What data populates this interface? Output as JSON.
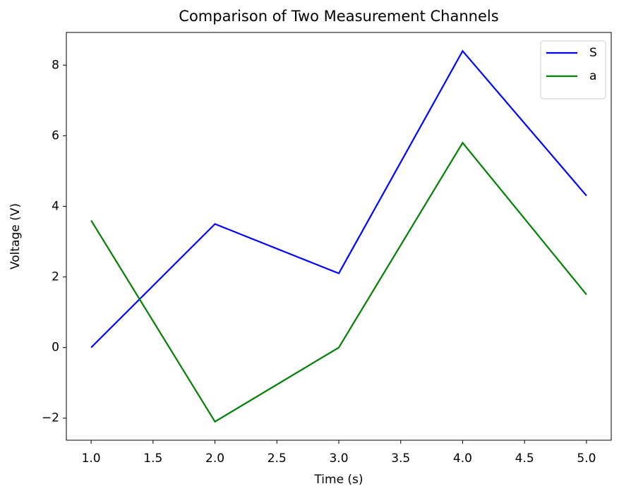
{
  "chart_data": {
    "type": "line",
    "title": "Comparison of Two Measurement Channels",
    "x_label": "Time (s)",
    "y_label": "Voltage (V)",
    "x": [
      1,
      2,
      3,
      4,
      5
    ],
    "series": [
      {
        "name": "S",
        "color": "#0000ff",
        "values": [
          0,
          3.5,
          2.1,
          8.4,
          4.3
        ]
      },
      {
        "name": "a",
        "color": "#008000",
        "values": [
          3.6,
          -2.1,
          0,
          5.8,
          1.5
        ]
      }
    ],
    "xlim": [
      0.8,
      5.2
    ],
    "xticks": [
      {
        "value": 1,
        "label": "1.0"
      },
      {
        "value": 1.5,
        "label": "1.5"
      },
      {
        "value": 2,
        "label": "2.0"
      },
      {
        "value": 2.5,
        "label": "2.5"
      },
      {
        "value": 3,
        "label": "3.0"
      },
      {
        "value": 3.5,
        "label": "3.5"
      },
      {
        "value": 4,
        "label": "4.0"
      },
      {
        "value": 4.5,
        "label": "4.5"
      },
      {
        "value": 5,
        "label": "5.0"
      }
    ],
    "ylim": [
      -2.625,
      8.925
    ],
    "yticks": [
      {
        "value": -2,
        "label": "−2"
      },
      0,
      2,
      4,
      6,
      8
    ],
    "grid": false,
    "legend": "upper-right"
  }
}
